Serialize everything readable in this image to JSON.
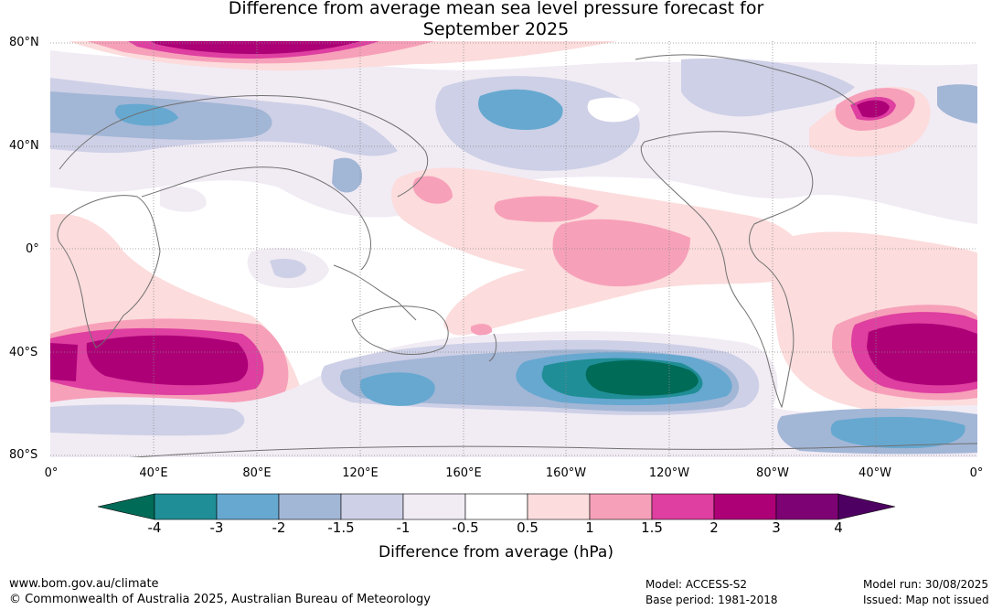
{
  "title": {
    "line1": "Difference from average mean sea level pressure forecast for",
    "line2": "September 2025"
  },
  "axes": {
    "lat_labels": [
      "80°N",
      "40°N",
      "0°",
      "40°S",
      "80°S"
    ],
    "lon_labels": [
      "0°",
      "40°E",
      "80°E",
      "120°E",
      "160°E",
      "160°W",
      "120°W",
      "80°W",
      "40°W",
      "0°"
    ]
  },
  "colorbar": {
    "label": "Difference from average (hPa)",
    "ticks": [
      "-4",
      "-3",
      "-2",
      "-1.5",
      "-1",
      "-0.5",
      "0.5",
      "1",
      "1.5",
      "2",
      "3",
      "4"
    ],
    "colors": [
      "#006b57",
      "#1f8e96",
      "#66a8d0",
      "#a2b6d6",
      "#cdd0e6",
      "#f1ebf4",
      "#ffffff",
      "#fcdcdc",
      "#f7a0b9",
      "#de3fa0",
      "#ad0077",
      "#7d0274",
      "#4d0061"
    ]
  },
  "footer": {
    "website": "www.bom.gov.au/climate",
    "copyright": "© Commonwealth of Australia 2025, Australian Bureau of Meteorology",
    "model": "Model: ACCESS-S2",
    "base_period": "Base period: 1981-2018",
    "model_run": "Model run: 30/08/2025",
    "issued": "Issued: Map not issued"
  }
}
